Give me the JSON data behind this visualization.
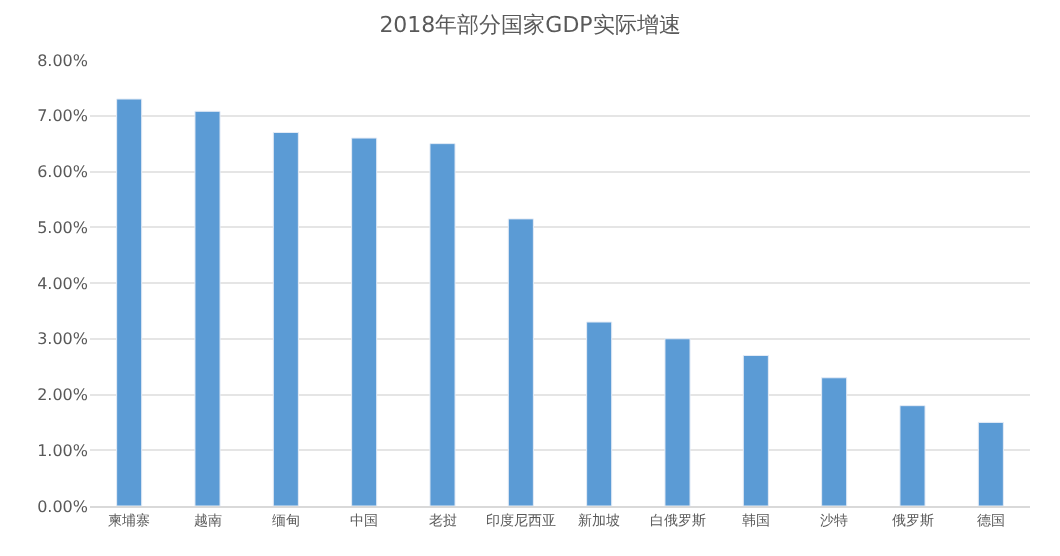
{
  "chart_data": {
    "type": "bar",
    "title": "2018年部分国家GDP实际增速",
    "categories": [
      "柬埔寨",
      "越南",
      "缅甸",
      "中国",
      "老挝",
      "印度尼西亚",
      "新加坡",
      "白俄罗斯",
      "韩国",
      "沙特",
      "俄罗斯",
      "德国"
    ],
    "values": [
      7.3,
      7.08,
      6.7,
      6.6,
      6.5,
      5.15,
      3.3,
      3.0,
      2.7,
      2.3,
      1.8,
      1.5
    ],
    "color": "#5b9bd5",
    "ylim": [
      0,
      8
    ],
    "yticks": [
      {
        "value": 0,
        "label": "0.00%"
      },
      {
        "value": 1,
        "label": "1.00%"
      },
      {
        "value": 2,
        "label": "2.00%"
      },
      {
        "value": 3,
        "label": "3.00%"
      },
      {
        "value": 4,
        "label": "4.00%"
      },
      {
        "value": 5,
        "label": "5.00%"
      },
      {
        "value": 6,
        "label": "6.00%"
      },
      {
        "value": 7,
        "label": "7.00%"
      },
      {
        "value": 8,
        "label": "8.00%"
      }
    ],
    "grid": "y"
  }
}
